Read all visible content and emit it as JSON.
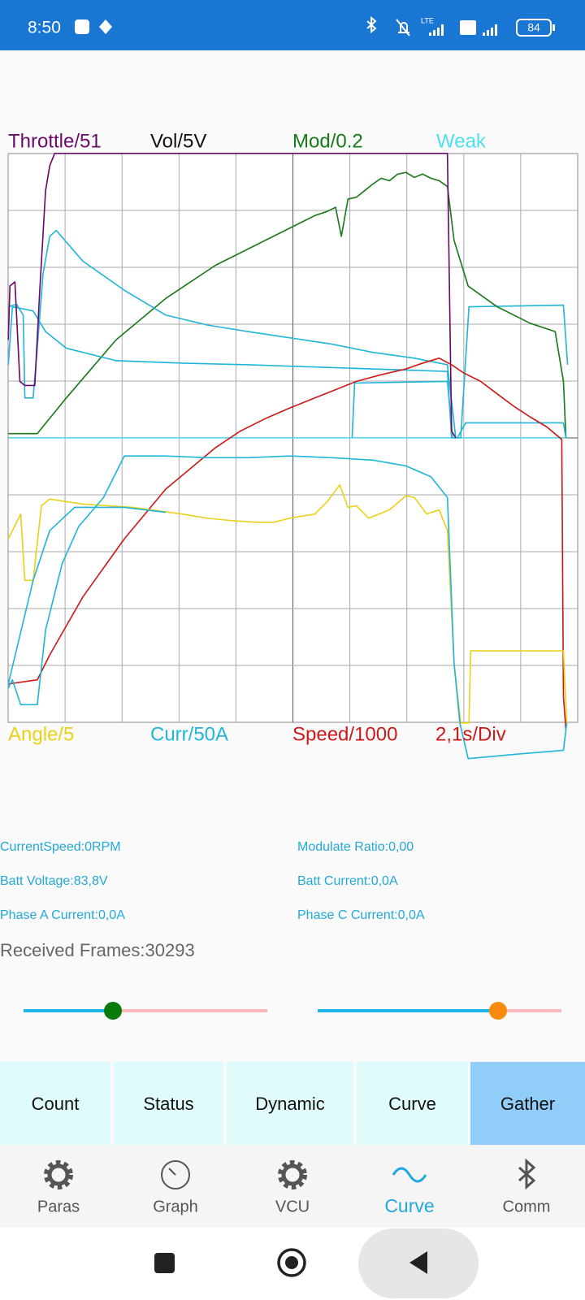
{
  "status_bar": {
    "time": "8:50",
    "network": "LTE",
    "battery": "84"
  },
  "scope": {
    "top_labels": [
      "Throttle/51",
      "Vol/5V",
      "Mod/0.2",
      "Weak"
    ],
    "bottom_labels": [
      "Angle/5",
      "Curr/50A",
      "Speed/1000",
      "2,1s/Div"
    ]
  },
  "readouts": [
    [
      "CurrentSpeed:0RPM",
      "Modulate Ratio:0,00"
    ],
    [
      "Batt Voltage:83,8V",
      "Batt Current:0,0A"
    ],
    [
      "Phase A Current:0,0A",
      "Phase C Current:0,0A"
    ]
  ],
  "frames": "Received Frames:30293",
  "tabs": [
    "Count",
    "Status",
    "Dynamic",
    "Curve",
    "Gather"
  ],
  "nav": [
    "Paras",
    "Graph",
    "VCU",
    "Curve",
    "Comm"
  ]
}
